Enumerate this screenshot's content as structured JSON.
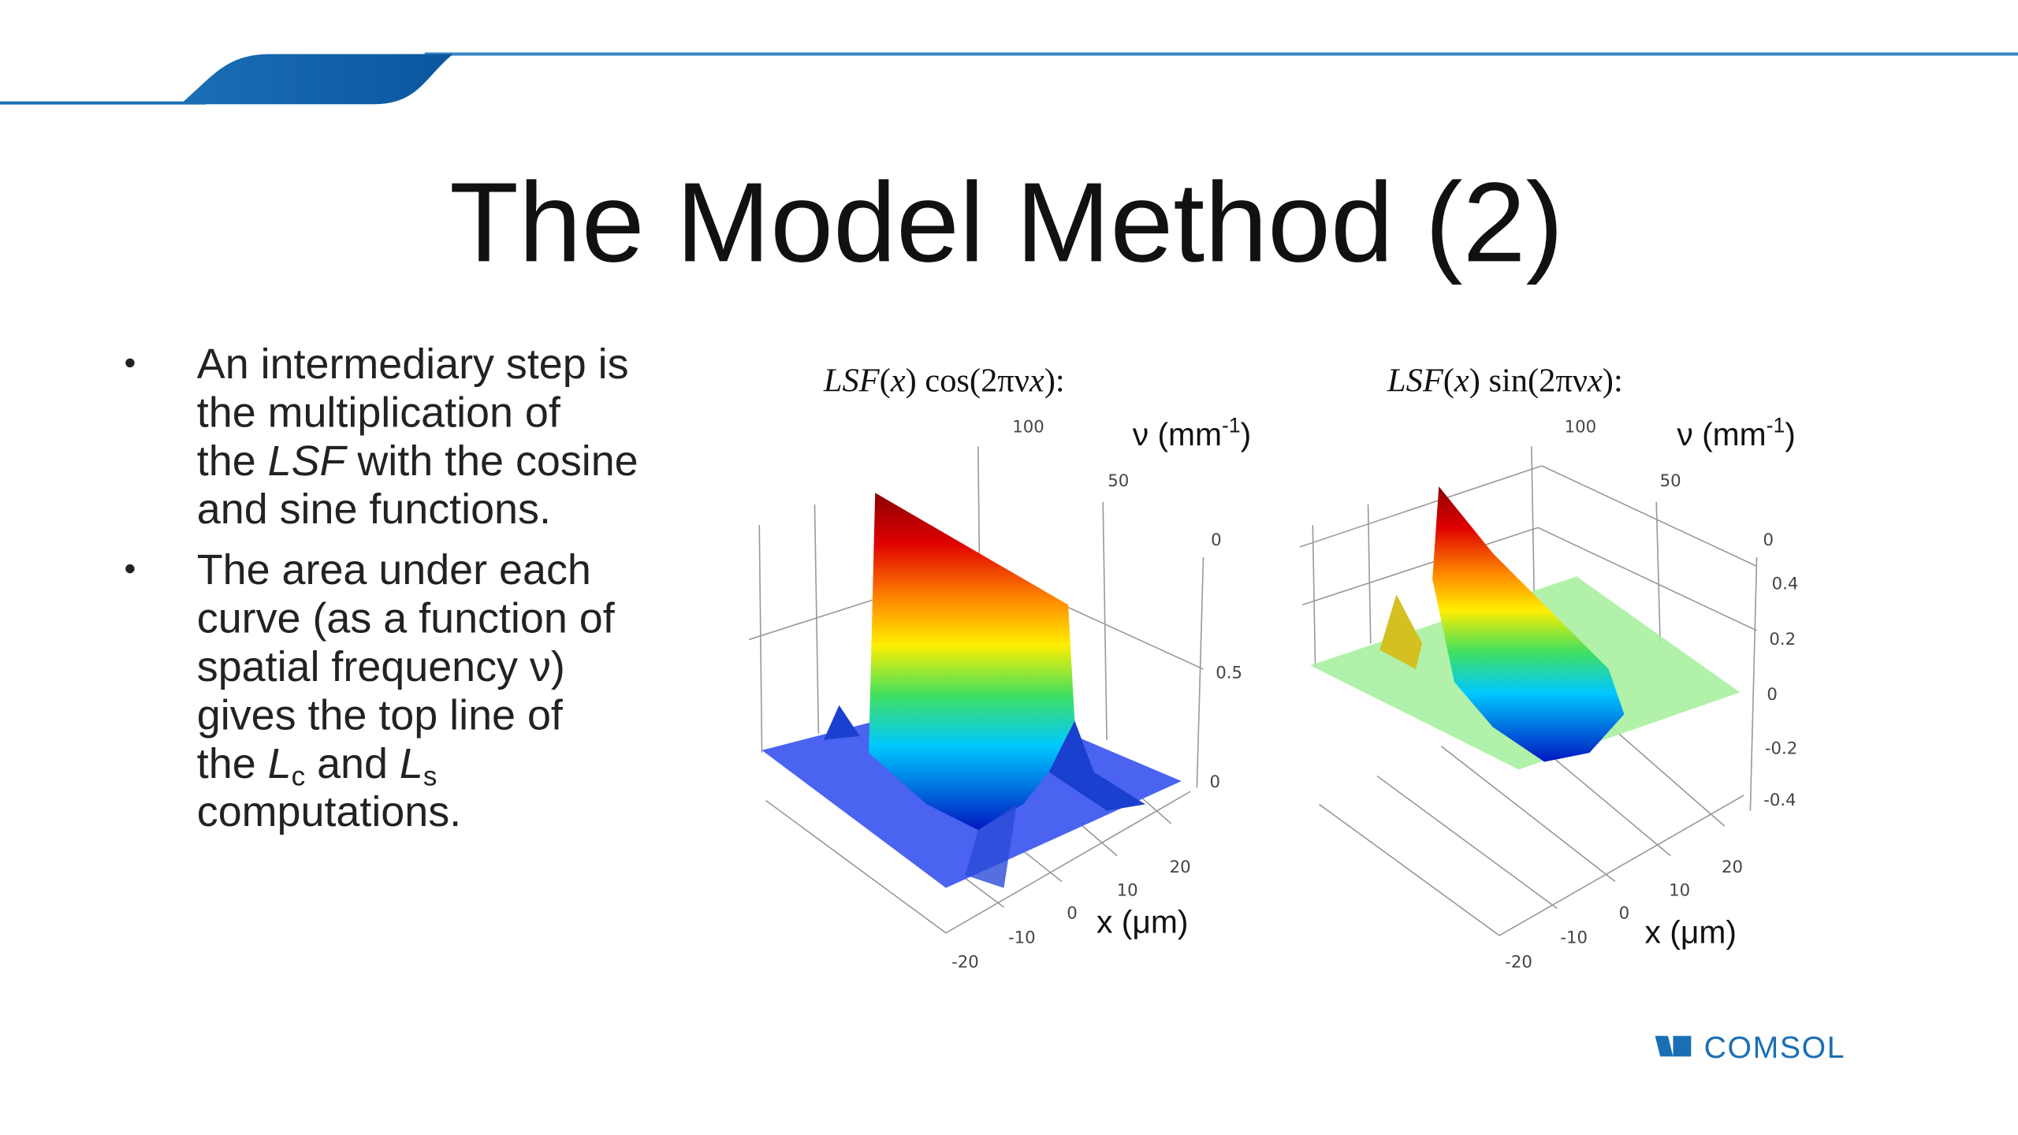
{
  "header": {
    "title": "The Model Method (2)"
  },
  "bullets": [
    {
      "lines": [
        [
          {
            "text": "An intermediary step is"
          }
        ],
        [
          {
            "text": "the multiplication of"
          }
        ],
        [
          {
            "text": "the "
          },
          {
            "text": "LSF",
            "italic": true
          },
          {
            "text": " with the cosine"
          }
        ],
        [
          {
            "text": "and sine functions."
          }
        ]
      ]
    },
    {
      "lines": [
        [
          {
            "text": "The area under each"
          }
        ],
        [
          {
            "text": "curve (as a function of"
          }
        ],
        [
          {
            "text": "spatial frequency ν)"
          }
        ],
        [
          {
            "text": "gives the top line of"
          }
        ],
        [
          {
            "text": "the "
          },
          {
            "text": "L",
            "italic": true
          },
          {
            "text": "c",
            "sub": true
          },
          {
            "text": " and "
          },
          {
            "text": "L",
            "italic": true
          },
          {
            "text": "s",
            "sub": true
          }
        ],
        [
          {
            "text": "computations."
          }
        ]
      ]
    }
  ],
  "plots": [
    {
      "title": [
        {
          "text": "LSF",
          "italic": true
        },
        {
          "text": "("
        },
        {
          "text": "x",
          "italic": true
        },
        {
          "text": ") cos(2πν"
        },
        {
          "text": "x",
          "italic": true
        },
        {
          "text": "):"
        }
      ],
      "nu_label": [
        {
          "text": "ν (mm"
        },
        {
          "text": "-1",
          "sup": true
        },
        {
          "text": ")"
        }
      ],
      "x_label": [
        {
          "text": "x (μm)"
        }
      ],
      "nu_ticks": [
        100,
        50,
        0
      ],
      "z_ticks": [
        0.5,
        0
      ],
      "x_ticks": [
        20,
        10,
        0,
        -10,
        -20
      ]
    },
    {
      "title": [
        {
          "text": "LSF",
          "italic": true
        },
        {
          "text": "("
        },
        {
          "text": "x",
          "italic": true
        },
        {
          "text": ") sin(2πν"
        },
        {
          "text": "x",
          "italic": true
        },
        {
          "text": "):"
        }
      ],
      "nu_label": [
        {
          "text": "ν (mm"
        },
        {
          "text": "-1",
          "sup": true
        },
        {
          "text": ")"
        }
      ],
      "x_label": [
        {
          "text": "x (μm)"
        }
      ],
      "nu_ticks": [
        100,
        50,
        0
      ],
      "z_ticks": [
        0.4,
        0.2,
        0,
        -0.2,
        -0.4
      ],
      "x_ticks": [
        20,
        10,
        0,
        -10,
        -20
      ]
    }
  ],
  "logo": "COMSOL"
}
